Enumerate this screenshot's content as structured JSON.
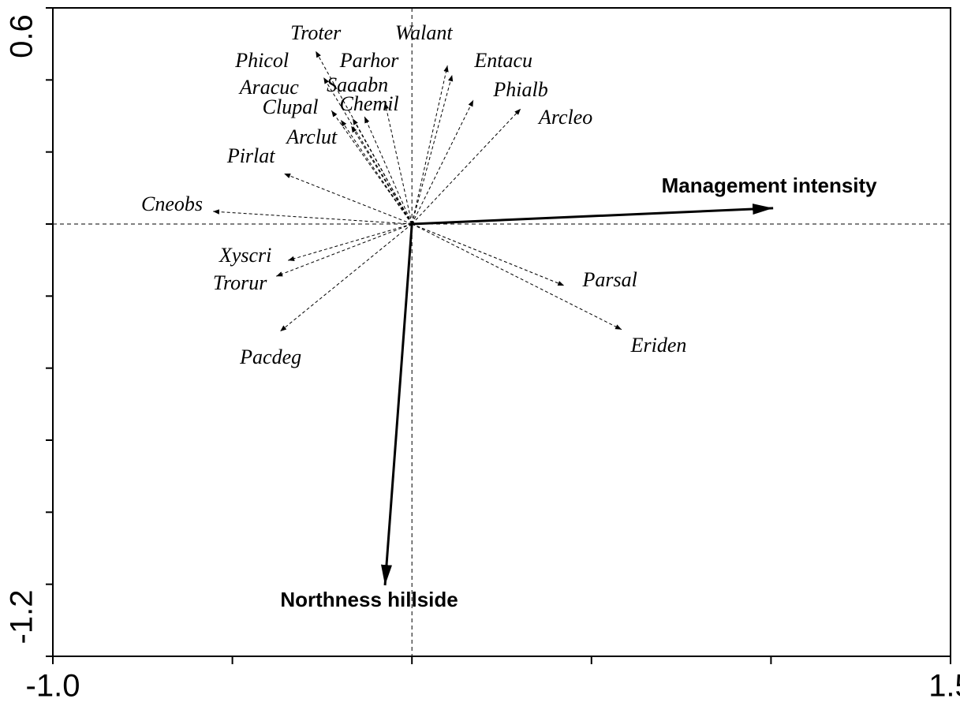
{
  "chart_data": {
    "type": "biplot",
    "xlim": [
      -1.0,
      1.5
    ],
    "ylim": [
      -1.2,
      0.6
    ],
    "xticks": [
      {
        "value": -1.0,
        "label": "-1.0"
      },
      {
        "value": 1.5,
        "label": "1.5"
      }
    ],
    "xminorticks": [
      -0.5,
      0,
      0.5,
      1
    ],
    "yticks": [
      {
        "value": -1.2,
        "label": "-1.2"
      },
      0.6
    ],
    "yminorticks": [
      -1.0,
      -0.8,
      -0.6,
      -0.4,
      -0.2,
      0,
      0.2,
      0.4
    ],
    "species": {
      "names": [
        "Troter",
        "Walant",
        "Entacu",
        "Phicol",
        "Parhor",
        "Aracuc",
        "Saaabn",
        "Clupal",
        "Chemil",
        "Arclut",
        "Phialb",
        "Arcleo",
        "Pirlat",
        "Cneobs",
        "Xyscri",
        "Trorur",
        "Pacdeg",
        "Parsal",
        "Eriden"
      ],
      "x": [
        -0.268,
        0.099,
        0.112,
        -0.246,
        -0.075,
        -0.224,
        -0.165,
        -0.198,
        -0.132,
        -0.169,
        0.171,
        0.303,
        -0.356,
        -0.554,
        -0.345,
        -0.378,
        -0.367,
        0.424,
        0.584
      ],
      "y": [
        0.48,
        0.44,
        0.414,
        0.407,
        0.337,
        0.315,
        0.293,
        0.289,
        0.298,
        0.272,
        0.344,
        0.32,
        0.14,
        0.035,
        -0.101,
        -0.145,
        -0.298,
        -0.171,
        -0.293
      ]
    },
    "environment": {
      "names": [
        "Management intensity",
        "Northness hillside"
      ],
      "x": [
        1.006,
        -0.075
      ],
      "y": [
        0.044,
        -1.003
      ]
    }
  }
}
